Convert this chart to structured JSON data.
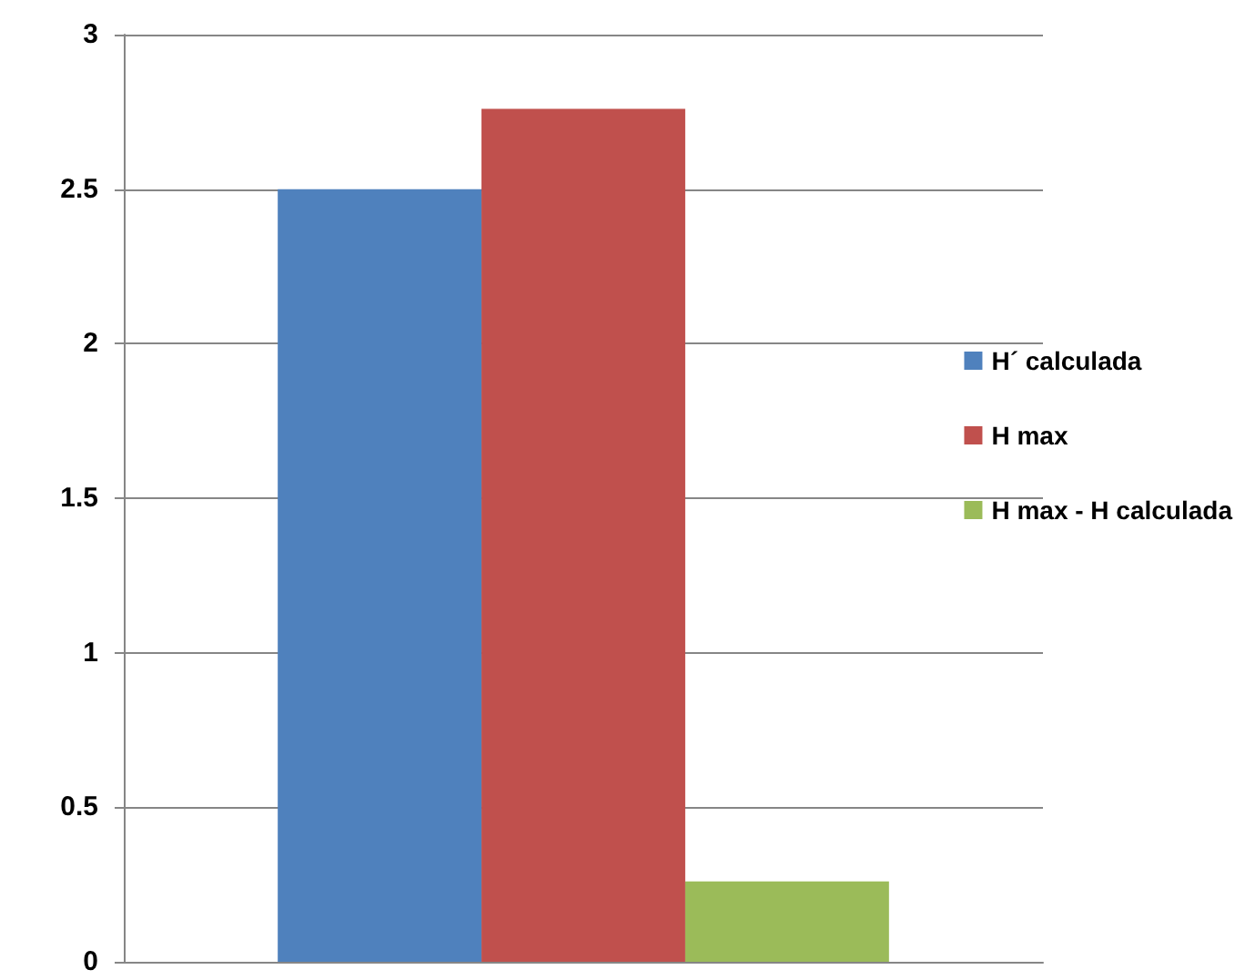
{
  "chart_data": {
    "type": "bar",
    "categories": [
      null
    ],
    "series": [
      {
        "name": "H´ calculada",
        "color": "#4f81bd",
        "values": [
          2.5
        ]
      },
      {
        "name": "H max",
        "color": "#c0504d",
        "values": [
          2.76
        ]
      },
      {
        "name": "H max - H calculada",
        "color": "#9bbb59",
        "values": [
          0.26
        ]
      }
    ],
    "ylim": [
      0,
      3
    ],
    "yticks": [
      0,
      0.5,
      1,
      1.5,
      2,
      2.5,
      3
    ],
    "grid": "y",
    "legend": "right"
  }
}
